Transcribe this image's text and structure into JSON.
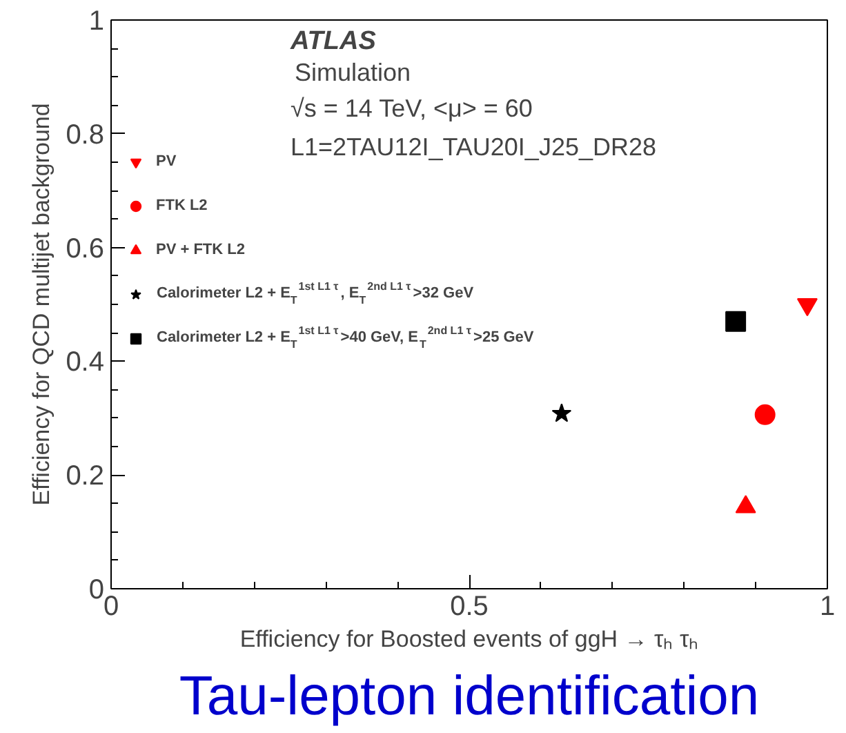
{
  "chart_data": {
    "type": "scatter",
    "title": "Tau-lepton identification",
    "xlabel": "Efficiency for Boosted events of ggH → τₕ τₕ",
    "ylabel": "Efficiency for QCD multijet background",
    "annotations": [
      "ATLAS",
      "Simulation",
      "√s = 14 TeV, <μ> = 60",
      "L1=2TAU12I_TAU20I_J25_DR28"
    ],
    "xlim": [
      0,
      1
    ],
    "ylim": [
      0,
      1
    ],
    "xticks": [
      0,
      0.5,
      1
    ],
    "yticks": [
      0,
      0.2,
      0.4,
      0.6,
      0.8,
      1
    ],
    "grid": false,
    "legend": "top left",
    "series": [
      {
        "name": "PV",
        "color": "#ff0000",
        "x": [
          0.972
        ],
        "values": [
          0.5
        ]
      },
      {
        "name": "FTK L2",
        "color": "#ff0000",
        "marker": "circle",
        "x": [
          0.913
        ],
        "values": [
          0.306
        ]
      },
      {
        "name": "PV + FTK L2",
        "color": "#ff0000",
        "marker": "triangle",
        "x": [
          0.886
        ],
        "values": [
          0.144
        ]
      },
      {
        "name": "Calorimeter L2 + E$_{T}$$^{1st L1 τ}$, E$_{T}$$^{2nd L1 τ}$>32 GeV",
        "color": "#000000",
        "marker": "star",
        "x": [
          0.629
        ],
        "values": [
          0.308
        ]
      },
      {
        "name": "Calorimeter L2 + E$_{T}$$^{1st L1 τ}$>40 GeV, E$_{T}$$^{2nd L1 τ}$>25 GeV",
        "color": "#000000",
        "marker": "square",
        "x": [
          0.872
        ],
        "values": [
          0.47
        ]
      }
    ]
  }
}
